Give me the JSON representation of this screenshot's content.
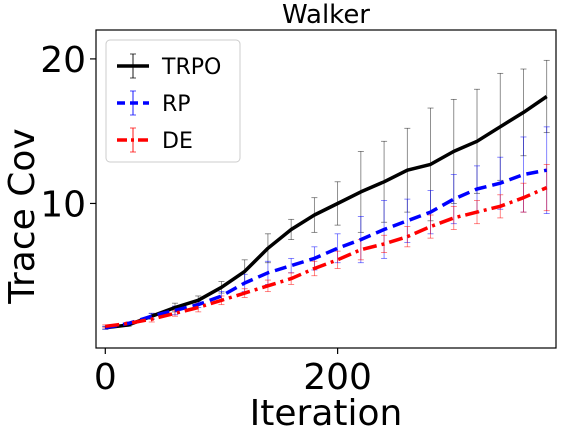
{
  "chart_data": {
    "type": "line",
    "title": "Walker",
    "xlabel": "Iteration",
    "ylabel": "Trace Cov",
    "xlim": [
      -8,
      388
    ],
    "ylim": [
      0,
      22
    ],
    "x_ticks": [
      0,
      200
    ],
    "y_ticks": [
      10,
      20
    ],
    "grid": false,
    "legend_position": "upper-left",
    "x": [
      0,
      20,
      40,
      60,
      80,
      100,
      120,
      140,
      160,
      180,
      200,
      220,
      240,
      260,
      280,
      300,
      320,
      340,
      360,
      380
    ],
    "series": [
      {
        "name": "TRPO",
        "color": "#000000",
        "dash": "solid",
        "values": [
          1.4,
          1.6,
          2.2,
          2.8,
          3.3,
          4.2,
          5.3,
          6.9,
          8.2,
          9.2,
          10.0,
          10.8,
          11.5,
          12.3,
          12.7,
          13.6,
          14.3,
          15.3,
          16.3,
          17.4
        ],
        "errors": [
          0.1,
          0.1,
          0.2,
          0.3,
          0.3,
          0.4,
          0.8,
          1.0,
          0.7,
          1.2,
          1.5,
          2.8,
          2.8,
          2.9,
          3.9,
          3.6,
          3.6,
          3.7,
          3.0,
          2.5
        ]
      },
      {
        "name": "RP",
        "color": "#0000ff",
        "dash": "dashed",
        "values": [
          1.4,
          1.7,
          2.2,
          2.6,
          3.0,
          3.6,
          4.5,
          5.2,
          5.7,
          6.2,
          6.9,
          7.5,
          8.2,
          8.8,
          9.4,
          10.3,
          11.0,
          11.4,
          12.0,
          12.3
        ],
        "errors": [
          0.1,
          0.1,
          0.2,
          0.3,
          0.2,
          0.3,
          0.6,
          0.8,
          0.5,
          0.8,
          1.0,
          1.6,
          2.0,
          1.5,
          1.5,
          1.7,
          1.6,
          1.8,
          2.6,
          3.0
        ]
      },
      {
        "name": "DE",
        "color": "#ff0000",
        "dash": "dashdot",
        "values": [
          1.5,
          1.7,
          2.0,
          2.4,
          2.8,
          3.3,
          3.8,
          4.3,
          4.8,
          5.5,
          6.1,
          6.8,
          7.2,
          7.7,
          8.4,
          9.0,
          9.4,
          9.8,
          10.4,
          11.1
        ],
        "errors": [
          0.1,
          0.1,
          0.2,
          0.2,
          0.3,
          0.3,
          0.3,
          0.4,
          0.4,
          0.5,
          0.6,
          0.7,
          0.6,
          0.7,
          0.8,
          0.8,
          0.8,
          0.8,
          1.0,
          1.6
        ]
      }
    ]
  }
}
